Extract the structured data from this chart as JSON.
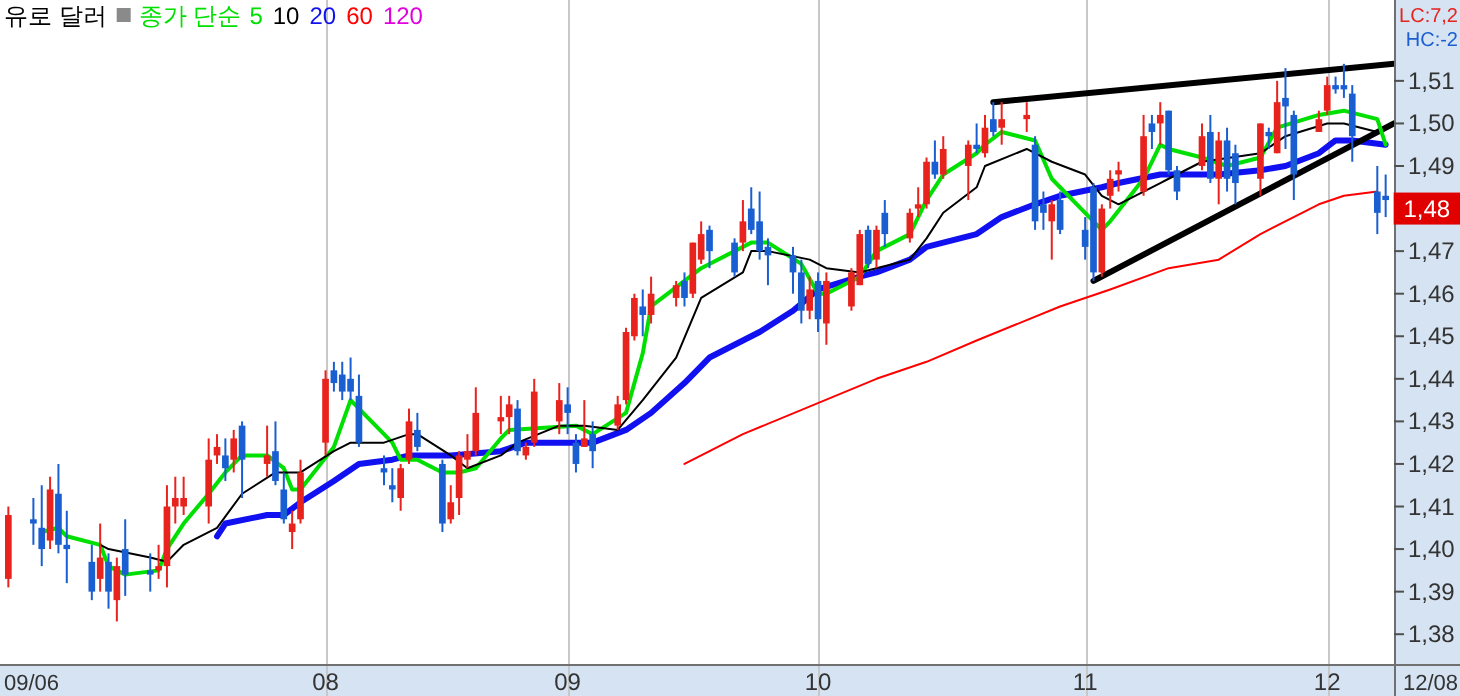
{
  "chart_data": {
    "type": "candlestick",
    "title": "유로 달러",
    "legend_title": "종가 단순",
    "legend": "top left",
    "grid": "x",
    "xlim": [
      "2009-06-25",
      "2009-12-09"
    ],
    "ylim": [
      1.373,
      1.529
    ],
    "xticks": [
      {
        "value": "2009-08-03",
        "label": "08"
      },
      {
        "value": "2009-09-01",
        "label": "09"
      },
      {
        "value": "2009-10-01",
        "label": "10"
      },
      {
        "value": "2009-11-02",
        "label": "11"
      },
      {
        "value": "2009-12-01",
        "label": "12"
      }
    ],
    "yticks": [
      {
        "value": 1.38,
        "label": "1,38"
      },
      {
        "value": 1.39,
        "label": "1,39"
      },
      {
        "value": 1.4,
        "label": "1,40"
      },
      {
        "value": 1.41,
        "label": "1,41"
      },
      {
        "value": 1.42,
        "label": "1,42"
      },
      {
        "value": 1.43,
        "label": "1,43"
      },
      {
        "value": 1.44,
        "label": "1,44"
      },
      {
        "value": 1.45,
        "label": "1,45"
      },
      {
        "value": 1.46,
        "label": "1,46"
      },
      {
        "value": 1.47,
        "label": "1,47"
      },
      {
        "value": 1.49,
        "label": "1,49"
      },
      {
        "value": 1.5,
        "label": "1,50"
      },
      {
        "value": 1.51,
        "label": "1,51"
      }
    ],
    "annotations": [
      "09/06",
      "12/08",
      "LC:7,2",
      "HC:-2",
      {
        "text": "1,48",
        "x": "2009-12-08",
        "y": 1.48
      }
    ],
    "x": [
      "2009-06-26",
      "2009-06-29",
      "2009-06-30",
      "2009-07-01",
      "2009-07-02",
      "2009-07-03",
      "2009-07-06",
      "2009-07-07",
      "2009-07-08",
      "2009-07-09",
      "2009-07-10",
      "2009-07-13",
      "2009-07-14",
      "2009-07-15",
      "2009-07-16",
      "2009-07-17",
      "2009-07-20",
      "2009-07-21",
      "2009-07-22",
      "2009-07-23",
      "2009-07-24",
      "2009-07-27",
      "2009-07-28",
      "2009-07-29",
      "2009-07-30",
      "2009-07-31",
      "2009-08-03",
      "2009-08-04",
      "2009-08-05",
      "2009-08-06",
      "2009-08-07",
      "2009-08-10",
      "2009-08-11",
      "2009-08-12",
      "2009-08-13",
      "2009-08-14",
      "2009-08-17",
      "2009-08-18",
      "2009-08-19",
      "2009-08-20",
      "2009-08-21",
      "2009-08-24",
      "2009-08-25",
      "2009-08-26",
      "2009-08-27",
      "2009-08-28",
      "2009-08-31",
      "2009-09-01",
      "2009-09-02",
      "2009-09-03",
      "2009-09-04",
      "2009-09-07",
      "2009-09-08",
      "2009-09-09",
      "2009-09-10",
      "2009-09-11",
      "2009-09-14",
      "2009-09-15",
      "2009-09-16",
      "2009-09-17",
      "2009-09-18",
      "2009-09-21",
      "2009-09-22",
      "2009-09-23",
      "2009-09-24",
      "2009-09-25",
      "2009-09-28",
      "2009-09-29",
      "2009-09-30",
      "2009-10-01",
      "2009-10-02",
      "2009-10-05",
      "2009-10-06",
      "2009-10-07",
      "2009-10-08",
      "2009-10-09",
      "2009-10-12",
      "2009-10-13",
      "2009-10-14",
      "2009-10-15",
      "2009-10-16",
      "2009-10-19",
      "2009-10-20",
      "2009-10-21",
      "2009-10-22",
      "2009-10-23",
      "2009-10-26",
      "2009-10-27",
      "2009-10-28",
      "2009-10-29",
      "2009-10-30",
      "2009-11-02",
      "2009-11-03",
      "2009-11-04",
      "2009-11-05",
      "2009-11-06",
      "2009-11-09",
      "2009-11-10",
      "2009-11-11",
      "2009-11-12",
      "2009-11-13",
      "2009-11-16",
      "2009-11-17",
      "2009-11-18",
      "2009-11-19",
      "2009-11-20",
      "2009-11-23",
      "2009-11-24",
      "2009-11-25",
      "2009-11-26",
      "2009-11-27",
      "2009-11-30",
      "2009-12-01",
      "2009-12-02",
      "2009-12-03",
      "2009-12-04",
      "2009-12-07",
      "2009-12-08"
    ],
    "ohlc": [
      [
        1.393,
        1.41,
        1.391,
        1.408
      ],
      [
        1.407,
        1.412,
        1.401,
        1.406
      ],
      [
        1.405,
        1.415,
        1.396,
        1.4
      ],
      [
        1.402,
        1.417,
        1.4,
        1.414
      ],
      [
        1.413,
        1.42,
        1.399,
        1.401
      ],
      [
        1.401,
        1.409,
        1.392,
        1.4
      ],
      [
        1.397,
        1.401,
        1.388,
        1.39
      ],
      [
        1.393,
        1.406,
        1.39,
        1.398
      ],
      [
        1.397,
        1.399,
        1.386,
        1.39
      ],
      [
        1.388,
        1.398,
        1.383,
        1.396
      ],
      [
        1.4,
        1.407,
        1.389,
        1.394
      ],
      [
        1.395,
        1.399,
        1.39,
        1.394
      ],
      [
        1.395,
        1.401,
        1.393,
        1.396
      ],
      [
        1.396,
        1.415,
        1.391,
        1.41
      ],
      [
        1.41,
        1.417,
        1.406,
        1.412
      ],
      [
        1.41,
        1.417,
        1.408,
        1.412
      ],
      [
        1.41,
        1.426,
        1.406,
        1.421
      ],
      [
        1.422,
        1.427,
        1.42,
        1.424
      ],
      [
        1.422,
        1.426,
        1.416,
        1.419
      ],
      [
        1.421,
        1.428,
        1.418,
        1.426
      ],
      [
        1.429,
        1.43,
        1.412,
        1.421
      ],
      [
        1.42,
        1.429,
        1.417,
        1.422
      ],
      [
        1.423,
        1.43,
        1.415,
        1.416
      ],
      [
        1.414,
        1.418,
        1.406,
        1.407
      ],
      [
        1.404,
        1.409,
        1.4,
        1.406
      ],
      [
        1.407,
        1.421,
        1.406,
        1.418
      ],
      [
        1.425,
        1.442,
        1.422,
        1.44
      ],
      [
        1.442,
        1.444,
        1.437,
        1.439
      ],
      [
        1.441,
        1.444,
        1.435,
        1.437
      ],
      [
        1.44,
        1.445,
        1.435,
        1.437
      ],
      [
        1.436,
        1.441,
        1.424,
        1.425
      ],
      [
        1.419,
        1.422,
        1.415,
        1.418
      ],
      [
        1.415,
        1.419,
        1.411,
        1.414
      ],
      [
        1.412,
        1.42,
        1.409,
        1.419
      ],
      [
        1.421,
        1.433,
        1.42,
        1.43
      ],
      [
        1.428,
        1.432,
        1.423,
        1.424
      ],
      [
        1.42,
        1.421,
        1.404,
        1.406
      ],
      [
        1.407,
        1.415,
        1.406,
        1.411
      ],
      [
        1.412,
        1.423,
        1.408,
        1.422
      ],
      [
        1.421,
        1.427,
        1.419,
        1.423
      ],
      [
        1.423,
        1.438,
        1.422,
        1.432
      ],
      [
        1.43,
        1.436,
        1.427,
        1.431
      ],
      [
        1.431,
        1.436,
        1.427,
        1.434
      ],
      [
        1.433,
        1.435,
        1.422,
        1.423
      ],
      [
        1.422,
        1.425,
        1.421,
        1.424
      ],
      [
        1.425,
        1.44,
        1.424,
        1.437
      ],
      [
        1.43,
        1.439,
        1.427,
        1.435
      ],
      [
        1.434,
        1.438,
        1.427,
        1.432
      ],
      [
        1.425,
        1.427,
        1.418,
        1.42
      ],
      [
        1.424,
        1.435,
        1.424,
        1.426
      ],
      [
        1.427,
        1.43,
        1.419,
        1.423
      ],
      [
        1.429,
        1.436,
        1.428,
        1.434
      ],
      [
        1.435,
        1.452,
        1.434,
        1.451
      ],
      [
        1.45,
        1.46,
        1.449,
        1.459
      ],
      [
        1.457,
        1.461,
        1.45,
        1.455
      ],
      [
        1.455,
        1.464,
        1.453,
        1.46
      ],
      [
        1.459,
        1.463,
        1.457,
        1.462
      ],
      [
        1.463,
        1.465,
        1.457,
        1.459
      ],
      [
        1.46,
        1.472,
        1.459,
        1.472
      ],
      [
        1.468,
        1.477,
        1.467,
        1.474
      ],
      [
        1.475,
        1.476,
        1.466,
        1.47
      ],
      [
        1.472,
        1.473,
        1.464,
        1.465
      ],
      [
        1.472,
        1.482,
        1.47,
        1.477
      ],
      [
        1.48,
        1.485,
        1.474,
        1.475
      ],
      [
        1.477,
        1.484,
        1.468,
        1.47
      ],
      [
        1.471,
        1.473,
        1.462,
        1.469
      ],
      [
        1.469,
        1.471,
        1.46,
        1.465
      ],
      [
        1.465,
        1.468,
        1.453,
        1.456
      ],
      [
        1.456,
        1.464,
        1.454,
        1.461
      ],
      [
        1.463,
        1.465,
        1.451,
        1.454
      ],
      [
        1.453,
        1.465,
        1.448,
        1.463
      ],
      [
        1.457,
        1.466,
        1.456,
        1.465
      ],
      [
        1.462,
        1.475,
        1.462,
        1.474
      ],
      [
        1.475,
        1.476,
        1.466,
        1.467
      ],
      [
        1.468,
        1.476,
        1.466,
        1.475
      ],
      [
        1.479,
        1.482,
        1.471,
        1.474
      ],
      [
        1.473,
        1.48,
        1.472,
        1.479
      ],
      [
        1.48,
        1.485,
        1.478,
        1.481
      ],
      [
        1.481,
        1.492,
        1.48,
        1.491
      ],
      [
        1.491,
        1.496,
        1.487,
        1.488
      ],
      [
        1.488,
        1.497,
        1.487,
        1.494
      ],
      [
        1.49,
        1.496,
        1.482,
        1.495
      ],
      [
        1.495,
        1.5,
        1.493,
        1.494
      ],
      [
        1.493,
        1.502,
        1.492,
        1.499
      ],
      [
        1.501,
        1.505,
        1.497,
        1.498
      ],
      [
        1.499,
        1.505,
        1.495,
        1.501
      ],
      [
        1.501,
        1.505,
        1.498,
        1.502
      ],
      [
        1.495,
        1.497,
        1.475,
        1.477
      ],
      [
        1.481,
        1.484,
        1.475,
        1.479
      ],
      [
        1.477,
        1.482,
        1.468,
        1.481
      ],
      [
        1.482,
        1.484,
        1.474,
        1.475
      ],
      [
        1.475,
        1.478,
        1.468,
        1.471
      ],
      [
        1.485,
        1.486,
        1.463,
        1.465
      ],
      [
        1.465,
        1.481,
        1.464,
        1.48
      ],
      [
        1.483,
        1.489,
        1.48,
        1.487
      ],
      [
        1.488,
        1.491,
        1.484,
        1.489
      ],
      [
        1.484,
        1.502,
        1.483,
        1.497
      ],
      [
        1.5,
        1.502,
        1.494,
        1.498
      ],
      [
        1.5,
        1.505,
        1.495,
        1.502
      ],
      [
        1.503,
        1.503,
        1.488,
        1.489
      ],
      [
        1.489,
        1.49,
        1.482,
        1.484
      ],
      [
        1.49,
        1.5,
        1.489,
        1.497
      ],
      [
        1.498,
        1.502,
        1.486,
        1.487
      ],
      [
        1.487,
        1.498,
        1.481,
        1.496
      ],
      [
        1.496,
        1.499,
        1.484,
        1.487
      ],
      [
        1.493,
        1.495,
        1.481,
        1.486
      ],
      [
        1.487,
        1.5,
        1.483,
        1.5
      ],
      [
        1.498,
        1.499,
        1.494,
        1.497
      ],
      [
        1.493,
        1.51,
        1.493,
        1.505
      ],
      [
        1.506,
        1.513,
        1.494,
        1.504
      ],
      [
        1.502,
        1.503,
        1.482,
        1.488
      ],
      [
        1.498,
        1.503,
        1.498,
        1.501
      ],
      [
        1.503,
        1.511,
        1.502,
        1.509
      ],
      [
        1.509,
        1.511,
        1.507,
        1.508
      ],
      [
        1.509,
        1.514,
        1.506,
        1.508
      ],
      [
        1.507,
        1.509,
        1.491,
        1.497
      ],
      [
        1.484,
        1.49,
        1.474,
        1.479
      ],
      [
        1.483,
        1.488,
        1.478,
        1.482
      ]
    ],
    "colors": [
      "#e8231e",
      "#1a5fd1",
      "#1a5fd1",
      "#e8231e",
      "#1a5fd1",
      "#1a5fd1",
      "#1a5fd1",
      "#e8231e",
      "#1a5fd1",
      "#e8231e",
      "#1a5fd1",
      "#1a5fd1",
      "#e8231e",
      "#e8231e",
      "#e8231e",
      "#e8231e",
      "#e8231e",
      "#e8231e",
      "#1a5fd1",
      "#e8231e",
      "#1a5fd1",
      "#e8231e",
      "#1a5fd1",
      "#1a5fd1",
      "#e8231e",
      "#e8231e",
      "#e8231e",
      "#1a5fd1",
      "#1a5fd1",
      "#1a5fd1",
      "#1a5fd1",
      "#1a5fd1",
      "#1a5fd1",
      "#e8231e",
      "#e8231e",
      "#1a5fd1",
      "#1a5fd1",
      "#e8231e",
      "#e8231e",
      "#e8231e",
      "#e8231e",
      "#e8231e",
      "#e8231e",
      "#1a5fd1",
      "#e8231e",
      "#e8231e",
      "#e8231e",
      "#1a5fd1",
      "#1a5fd1",
      "#e8231e",
      "#1a5fd1",
      "#e8231e",
      "#e8231e",
      "#e8231e",
      "#1a5fd1",
      "#e8231e",
      "#e8231e",
      "#1a5fd1",
      "#e8231e",
      "#e8231e",
      "#1a5fd1",
      "#1a5fd1",
      "#e8231e",
      "#1a5fd1",
      "#1a5fd1",
      "#1a5fd1",
      "#1a5fd1",
      "#1a5fd1",
      "#e8231e",
      "#1a5fd1",
      "#e8231e",
      "#e8231e",
      "#e8231e",
      "#1a5fd1",
      "#e8231e",
      "#1a5fd1",
      "#e8231e",
      "#e8231e",
      "#e8231e",
      "#1a5fd1",
      "#e8231e",
      "#e8231e",
      "#1a5fd1",
      "#e8231e",
      "#1a5fd1",
      "#e8231e",
      "#e8231e",
      "#1a5fd1",
      "#1a5fd1",
      "#e8231e",
      "#1a5fd1",
      "#1a5fd1",
      "#1a5fd1",
      "#e8231e",
      "#e8231e",
      "#e8231e",
      "#e8231e",
      "#1a5fd1",
      "#e8231e",
      "#1a5fd1",
      "#1a5fd1",
      "#e8231e",
      "#1a5fd1",
      "#e8231e",
      "#1a5fd1",
      "#1a5fd1",
      "#e8231e",
      "#1a5fd1",
      "#e8231e",
      "#1a5fd1",
      "#1a5fd1",
      "#e8231e",
      "#e8231e",
      "#1a5fd1",
      "#1a5fd1",
      "#1a5fd1",
      "#1a5fd1",
      "#1a5fd1"
    ],
    "series": [
      {
        "name": "5",
        "type": "line",
        "color": "#00e000",
        "x": [
          "2009-06-30",
          "2009-07-02",
          "2009-07-03",
          "2009-07-07",
          "2009-07-08",
          "2009-07-10",
          "2009-07-14",
          "2009-07-15",
          "2009-07-17",
          "2009-07-20",
          "2009-07-22",
          "2009-07-24",
          "2009-07-27",
          "2009-07-29",
          "2009-07-30",
          "2009-07-31",
          "2009-08-04",
          "2009-08-06",
          "2009-08-11",
          "2009-08-12",
          "2009-08-14",
          "2009-08-17",
          "2009-08-19",
          "2009-08-21",
          "2009-08-24",
          "2009-08-25",
          "2009-09-02",
          "2009-09-04",
          "2009-09-08",
          "2009-09-10",
          "2009-09-11",
          "2009-09-15",
          "2009-09-17",
          "2009-09-22",
          "2009-09-23",
          "2009-09-25",
          "2009-09-29",
          "2009-10-01",
          "2009-10-02",
          "2009-10-06",
          "2009-10-08",
          "2009-10-12",
          "2009-10-14",
          "2009-10-16",
          "2009-10-20",
          "2009-10-21",
          "2009-10-23",
          "2009-10-27",
          "2009-10-29",
          "2009-11-02",
          "2009-11-04",
          "2009-11-05",
          "2009-11-09",
          "2009-11-11",
          "2009-11-12",
          "2009-11-16",
          "2009-11-19",
          "2009-11-23",
          "2009-11-25",
          "2009-11-30",
          "2009-12-03",
          "2009-12-07",
          "2009-12-08"
        ],
        "values": [
          1.404,
          1.405,
          1.403,
          1.401,
          1.396,
          1.394,
          1.395,
          1.4,
          1.406,
          1.413,
          1.418,
          1.422,
          1.422,
          1.419,
          1.414,
          1.414,
          1.424,
          1.435,
          1.425,
          1.421,
          1.421,
          1.418,
          1.418,
          1.419,
          1.426,
          1.428,
          1.429,
          1.427,
          1.432,
          1.446,
          1.457,
          1.463,
          1.466,
          1.471,
          1.472,
          1.472,
          1.467,
          1.46,
          1.46,
          1.464,
          1.47,
          1.474,
          1.482,
          1.488,
          1.493,
          1.495,
          1.498,
          1.496,
          1.487,
          1.479,
          1.475,
          1.477,
          1.487,
          1.495,
          1.494,
          1.492,
          1.49,
          1.492,
          1.499,
          1.502,
          1.503,
          1.501,
          1.495
        ]
      },
      {
        "name": "10",
        "type": "line",
        "color": "#000000",
        "x": [
          "2009-07-07",
          "2009-07-08",
          "2009-07-13",
          "2009-07-15",
          "2009-07-17",
          "2009-07-21",
          "2009-07-24",
          "2009-07-28",
          "2009-07-31",
          "2009-08-04",
          "2009-08-06",
          "2009-08-10",
          "2009-08-13",
          "2009-08-14",
          "2009-08-18",
          "2009-08-20",
          "2009-08-24",
          "2009-08-26",
          "2009-08-31",
          "2009-09-03",
          "2009-09-07",
          "2009-09-10",
          "2009-09-14",
          "2009-09-17",
          "2009-09-22",
          "2009-09-23",
          "2009-09-25",
          "2009-09-30",
          "2009-10-02",
          "2009-10-06",
          "2009-10-08",
          "2009-10-12",
          "2009-10-14",
          "2009-10-16",
          "2009-10-20",
          "2009-10-21",
          "2009-10-26",
          "2009-10-29",
          "2009-11-02",
          "2009-11-04",
          "2009-11-06",
          "2009-11-11",
          "2009-11-12",
          "2009-11-16",
          "2009-11-23",
          "2009-11-26",
          "2009-12-01",
          "2009-12-03",
          "2009-12-07"
        ],
        "values": [
          1.401,
          1.4,
          1.398,
          1.397,
          1.401,
          1.405,
          1.413,
          1.418,
          1.418,
          1.423,
          1.425,
          1.425,
          1.427,
          1.427,
          1.422,
          1.419,
          1.422,
          1.425,
          1.429,
          1.429,
          1.428,
          1.435,
          1.445,
          1.459,
          1.465,
          1.47,
          1.47,
          1.468,
          1.466,
          1.465,
          1.466,
          1.468,
          1.473,
          1.479,
          1.485,
          1.49,
          1.494,
          1.491,
          1.488,
          1.483,
          1.481,
          1.486,
          1.487,
          1.491,
          1.493,
          1.497,
          1.5,
          1.5,
          1.498
        ]
      },
      {
        "name": "20",
        "type": "line",
        "color": "#1010f0",
        "x": [
          "2009-07-21",
          "2009-07-22",
          "2009-07-27",
          "2009-07-29",
          "2009-07-31",
          "2009-08-04",
          "2009-08-07",
          "2009-08-11",
          "2009-08-13",
          "2009-08-18",
          "2009-08-24",
          "2009-08-27",
          "2009-09-01",
          "2009-09-04",
          "2009-09-08",
          "2009-09-11",
          "2009-09-15",
          "2009-09-18",
          "2009-09-24",
          "2009-09-28",
          "2009-10-01",
          "2009-10-06",
          "2009-10-08",
          "2009-10-12",
          "2009-10-14",
          "2009-10-20",
          "2009-10-23",
          "2009-10-27",
          "2009-10-30",
          "2009-11-04",
          "2009-11-06",
          "2009-11-11",
          "2009-11-13",
          "2009-11-18",
          "2009-11-23",
          "2009-11-26",
          "2009-11-30",
          "2009-12-02",
          "2009-12-04",
          "2009-12-08"
        ],
        "values": [
          1.403,
          1.406,
          1.408,
          1.408,
          1.411,
          1.416,
          1.42,
          1.421,
          1.422,
          1.422,
          1.423,
          1.425,
          1.425,
          1.425,
          1.428,
          1.432,
          1.439,
          1.445,
          1.451,
          1.456,
          1.461,
          1.464,
          1.465,
          1.468,
          1.471,
          1.474,
          1.478,
          1.481,
          1.483,
          1.485,
          1.486,
          1.488,
          1.488,
          1.488,
          1.489,
          1.49,
          1.493,
          1.496,
          1.496,
          1.495
        ]
      },
      {
        "name": "60",
        "type": "line",
        "color": "#ff0000",
        "x": [
          "2009-09-15",
          "2009-09-22",
          "2009-10-08",
          "2009-10-14",
          "2009-10-20",
          "2009-10-30",
          "2009-11-05",
          "2009-11-12",
          "2009-11-18",
          "2009-11-23",
          "2009-11-30",
          "2009-12-03",
          "2009-12-07"
        ],
        "values": [
          1.42,
          1.427,
          1.44,
          1.444,
          1.449,
          1.457,
          1.461,
          1.466,
          1.468,
          1.474,
          1.481,
          1.483,
          1.484
        ]
      },
      {
        "name": "120",
        "type": "line",
        "color": "#e000e0",
        "values": [
          null,
          null,
          null,
          null,
          null,
          null,
          null,
          null,
          null,
          null,
          null,
          null,
          null,
          null,
          null,
          null,
          null,
          null,
          null,
          null,
          null,
          null,
          null,
          null,
          null,
          null,
          null,
          null,
          null,
          null,
          null,
          null,
          null,
          null,
          null,
          null,
          null,
          null,
          null,
          null,
          null,
          null,
          null,
          null,
          null,
          null,
          null,
          null,
          null,
          null,
          null,
          null,
          null,
          null,
          null,
          null,
          null,
          null,
          null,
          null,
          null,
          null,
          null,
          null,
          null,
          null,
          null,
          null,
          null,
          null,
          null,
          null,
          null,
          null,
          null,
          null,
          null,
          null,
          null,
          null,
          null,
          null,
          null,
          null,
          null,
          null,
          null,
          null,
          null,
          null,
          null,
          null,
          null,
          null,
          null,
          null,
          null,
          null,
          null,
          null,
          null,
          null,
          null,
          null,
          null,
          null,
          null,
          null,
          null,
          null,
          null,
          null,
          null,
          null,
          null,
          null,
          null,
          null
        ]
      },
      {
        "type": "line",
        "color": "#000000",
        "x": [
          "2009-10-22",
          "2009-12-09"
        ],
        "values": [
          1.505,
          1.514
        ]
      },
      {
        "type": "line",
        "color": "#000000",
        "x": [
          "2009-11-03",
          "2009-12-09"
        ],
        "values": [
          1.463,
          1.5
        ]
      }
    ]
  }
}
